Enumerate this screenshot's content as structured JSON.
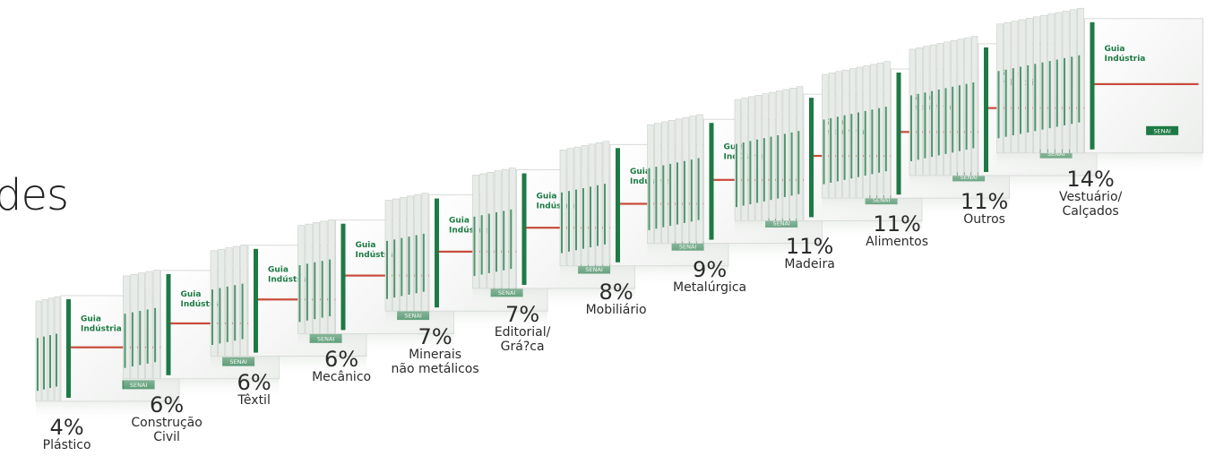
{
  "partial_title": "des",
  "book_cover": {
    "title_line1": "Guia",
    "title_line2": "Indústria",
    "brand_mark": "SENAI"
  },
  "colors": {
    "book_face": "#f7f7f7",
    "book_spine": "#e8ece8",
    "accent_green": "#1e7a45",
    "accent_red": "#c94a3a",
    "label_text": "#2b2b2b"
  },
  "chart_data": {
    "type": "bar",
    "title": "",
    "xlabel": "",
    "ylabel": "",
    "ylim": [
      0,
      14
    ],
    "grid": false,
    "categories": [
      "Plástico",
      "Construção Civil",
      "Têxtil",
      "Mecânico",
      "Minerais não metálicos",
      "Editorial/ Grá?ca",
      "Mobiliário",
      "Metalúrgica",
      "Madeira",
      "Alimentos",
      "Outros",
      "Vestuário/ Calçados"
    ],
    "category_lines": [
      [
        "Plástico"
      ],
      [
        "Construção",
        "Civil"
      ],
      [
        "Têxtil"
      ],
      [
        "Mecânico"
      ],
      [
        "Minerais",
        "não metálicos"
      ],
      [
        "Editorial/",
        "Grá?ca"
      ],
      [
        "Mobiliário"
      ],
      [
        "Metalúrgica"
      ],
      [
        "Madeira"
      ],
      [
        "Alimentos"
      ],
      [
        "Outros"
      ],
      [
        "Vestuário/",
        "Calçados"
      ]
    ],
    "values": [
      4,
      6,
      6,
      6,
      7,
      7,
      8,
      9,
      11,
      11,
      11,
      14
    ],
    "value_labels": [
      "4%",
      "6%",
      "6%",
      "6%",
      "7%",
      "7%",
      "8%",
      "9%",
      "11%",
      "11%",
      "11%",
      "14%"
    ]
  }
}
